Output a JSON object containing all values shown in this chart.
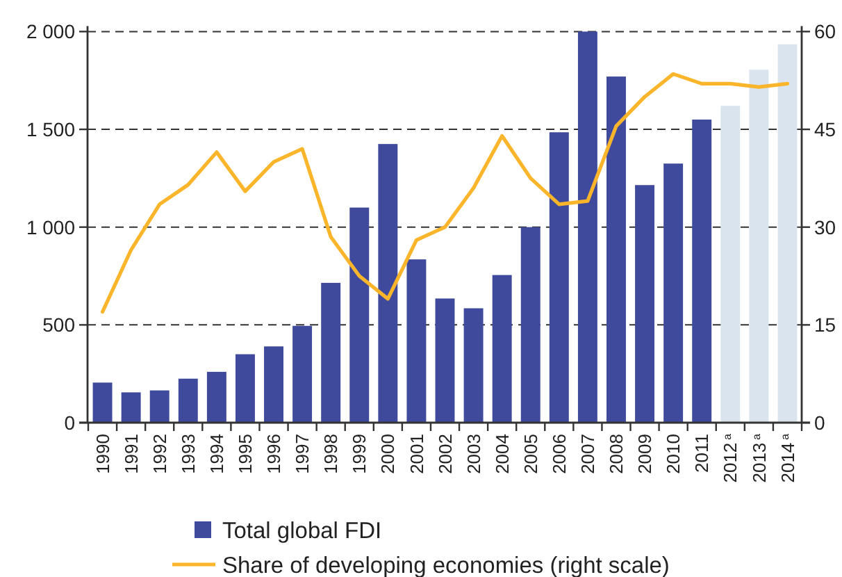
{
  "chart_data": {
    "type": "bar",
    "categories": [
      "1990",
      "1991",
      "1992",
      "1993",
      "1994",
      "1995",
      "1996",
      "1997",
      "1998",
      "1999",
      "2000",
      "2001",
      "2002",
      "2003",
      "2004",
      "2005",
      "2006",
      "2007",
      "2008",
      "2009",
      "2010",
      "2011",
      "2012$^{a}$",
      "2013$^{a}$",
      "2014$^{a}$"
    ],
    "series": [
      {
        "name": "Total global FDI",
        "color": "#3f4a9c",
        "colors": [
          "#3f4a9c",
          "#3f4a9c",
          "#3f4a9c",
          "#3f4a9c",
          "#3f4a9c",
          "#3f4a9c",
          "#3f4a9c",
          "#3f4a9c",
          "#3f4a9c",
          "#3f4a9c",
          "#3f4a9c",
          "#3f4a9c",
          "#3f4a9c",
          "#3f4a9c",
          "#3f4a9c",
          "#3f4a9c",
          "#3f4a9c",
          "#3f4a9c",
          "#3f4a9c",
          "#3f4a9c",
          "#3f4a9c",
          "#3f4a9c",
          "#dae4ef",
          "#dae4ef",
          "#dae4ef"
        ],
        "values": [
          205,
          155,
          165,
          225,
          260,
          350,
          390,
          495,
          715,
          1100,
          1425,
          835,
          635,
          585,
          755,
          1000,
          1485,
          2000,
          1770,
          1215,
          1325,
          1550,
          1620,
          1805,
          1935
        ]
      },
      {
        "name": "Share of developing economies (right scale)",
        "type": "line",
        "axis": "y2",
        "color": "#fbb52b",
        "values": [
          17,
          26.5,
          33.5,
          36.5,
          41.5,
          35.5,
          40,
          42,
          28.5,
          22.5,
          19,
          28,
          30,
          36,
          44,
          37.5,
          33.5,
          34,
          45.5,
          50,
          53.5,
          52,
          52,
          51.5,
          52
        ]
      }
    ],
    "ylim": [
      0,
      2000
    ],
    "yticks": [
      0,
      500,
      {
        "value": 1000,
        "label": "1 000"
      },
      {
        "value": 1500,
        "label": "1 500"
      },
      {
        "value": 2000,
        "label": "2 000"
      }
    ],
    "y2lim": [
      0,
      60
    ],
    "y2ticks": [
      0,
      15,
      30,
      45,
      60
    ],
    "grid": "y",
    "legend": "bottom"
  }
}
